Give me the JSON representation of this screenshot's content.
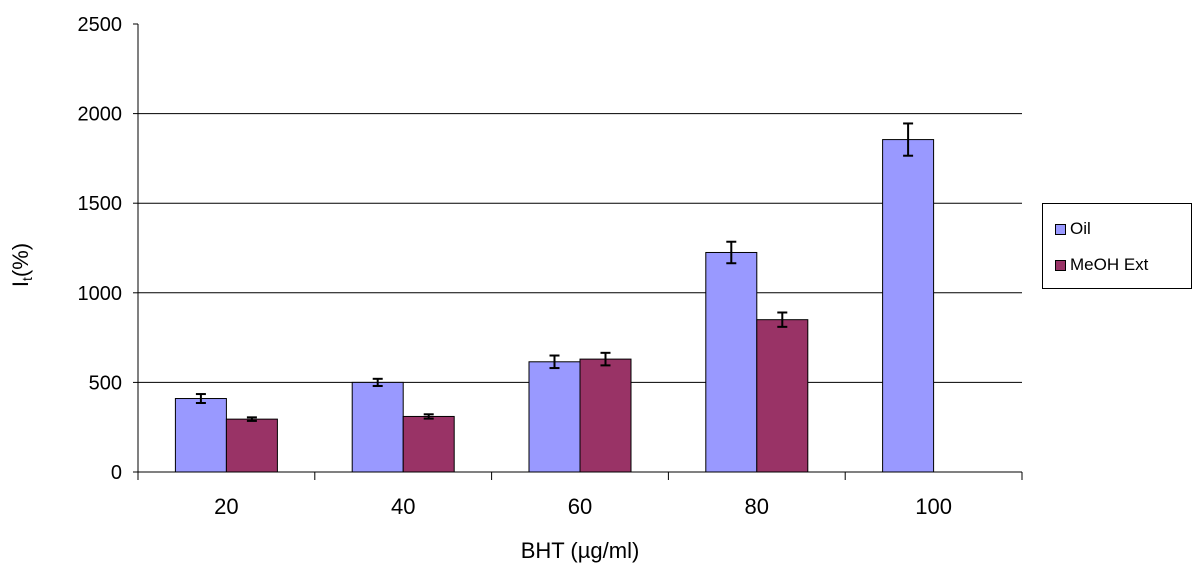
{
  "chart_data": {
    "type": "bar",
    "title": "",
    "xlabel": "BHT (µg/ml)",
    "ylabel": "I",
    "ylabel_sub": "t",
    "ylabel_suffix": "(%)",
    "categories": [
      "20",
      "40",
      "60",
      "80",
      "100"
    ],
    "ylim": [
      0,
      2500
    ],
    "yticks": [
      0,
      500,
      1000,
      1500,
      2000,
      2500
    ],
    "grid": true,
    "legend_position": "right",
    "series": [
      {
        "name": "Oil",
        "color": "#9999ff",
        "values": [
          410,
          500,
          615,
          1225,
          1855
        ],
        "errors": [
          25,
          20,
          35,
          60,
          90
        ]
      },
      {
        "name": "MeOH Ext",
        "color": "#993366",
        "values": [
          295,
          310,
          630,
          850,
          null
        ],
        "errors": [
          10,
          12,
          35,
          40,
          null
        ]
      }
    ]
  }
}
